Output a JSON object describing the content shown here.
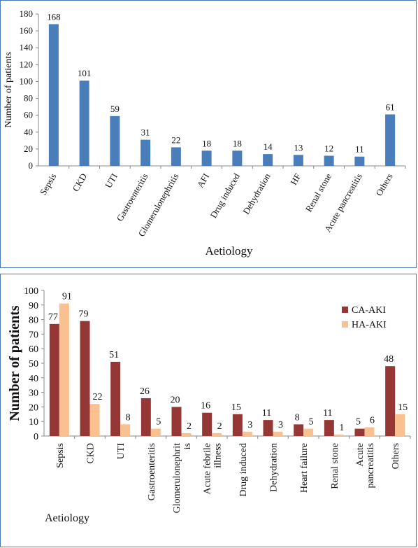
{
  "chart_data": [
    {
      "type": "bar",
      "title": "",
      "xlabel": "Aetiology",
      "ylabel": "Number of patients",
      "ylim": [
        0,
        180
      ],
      "yticks": [
        "0",
        "20",
        "40",
        "60",
        "80",
        "100",
        "120",
        "140",
        "160",
        "180"
      ],
      "categories": [
        "Sepsis",
        "CKD",
        "UTI",
        "Gastroenteritis",
        "Glomerulonephritis",
        "AFI",
        "Drug induced",
        "Dehydration",
        "HF",
        "Renal stone",
        "Acute pancreatitis",
        "Others"
      ],
      "series": [
        {
          "values": [
            168,
            101,
            59,
            31,
            22,
            18,
            18,
            14,
            13,
            12,
            11,
            61
          ],
          "color": "#4a7ebb"
        }
      ],
      "data_labels": [
        "168",
        "101",
        "59",
        "31",
        "22",
        "18",
        "18",
        "14",
        "13",
        "12",
        "11",
        "61"
      ],
      "grid": false,
      "legend": "none"
    },
    {
      "type": "bar",
      "title": "",
      "xlabel": "Aetiology",
      "ylabel": "Number of patients",
      "ylim": [
        0,
        100
      ],
      "yticks": [
        "0",
        "10",
        "20",
        "30",
        "40",
        "50",
        "60",
        "70",
        "80",
        "90",
        "100"
      ],
      "categories": [
        "Sepsis",
        "CKD",
        "UTI",
        "Gastroenteritis",
        "Glomerulonephrit is",
        "Acute febrile illness",
        "Drug induced",
        "Dehydration",
        "Heart failure",
        "Renal stone",
        "Acute pancreatitis",
        "Others"
      ],
      "series": [
        {
          "name": "CA-AKI",
          "values": [
            77,
            79,
            51,
            26,
            20,
            16,
            15,
            11,
            8,
            11,
            5,
            48
          ],
          "color": "#953735",
          "data_labels": [
            "77",
            "79",
            "51",
            "26",
            "20",
            "16",
            "15",
            "11",
            "8",
            "11",
            "5",
            "48"
          ]
        },
        {
          "name": "HA-AKI",
          "values": [
            91,
            22,
            8,
            5,
            2,
            2,
            3,
            3,
            5,
            1,
            6,
            15
          ],
          "color": "#fac090",
          "data_labels": [
            "91",
            "22",
            "8",
            "5",
            "2",
            "2",
            "3",
            "3",
            "5",
            "1",
            "6",
            "15"
          ]
        }
      ],
      "grid": false,
      "legend": "top-right"
    }
  ]
}
